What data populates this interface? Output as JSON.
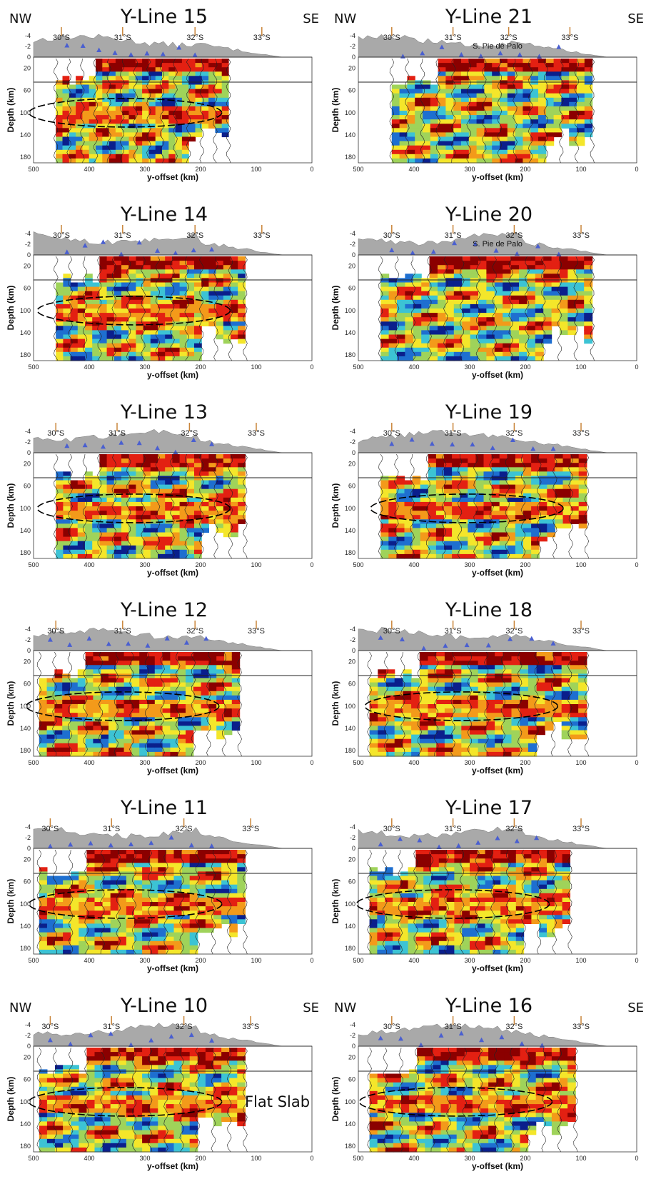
{
  "figure": {
    "corner_left": "NW",
    "corner_right": "SE",
    "xlabel": "y-offset (km)",
    "ylabel": "Depth (km)",
    "x_ticks": [
      "500",
      "400",
      "300",
      "200",
      "100",
      "0"
    ],
    "y_ticks": [
      "20",
      "60",
      "100",
      "140",
      "180"
    ],
    "topo_ticks": [
      "-4",
      "-2",
      "0"
    ],
    "lat_labels": [
      "30°S",
      "31°S",
      "32°S",
      "33°S"
    ],
    "annotation_pie": "S. Pie de Palo",
    "annotation_slab": "Flat Slab"
  },
  "chart_data": [
    {
      "type": "heatmap",
      "title": "Y-Line 15",
      "xlabel": "y-offset (km)",
      "ylabel": "Depth (km)",
      "xlim": [
        500,
        0
      ],
      "ylim": [
        0,
        190
      ],
      "corners": true,
      "data_x_range": [
        460,
        150
      ],
      "slab_depth_km": 100,
      "lat_positions_km": [
        450,
        340,
        210,
        90
      ]
    },
    {
      "type": "heatmap",
      "title": "Y-Line 21",
      "xlabel": "y-offset (km)",
      "ylabel": "Depth (km)",
      "xlim": [
        500,
        0
      ],
      "ylim": [
        0,
        190
      ],
      "corners": true,
      "data_x_range": [
        440,
        80
      ],
      "lat_positions_km": [
        440,
        330,
        230,
        120
      ],
      "annotation": "S. Pie de Palo"
    },
    {
      "type": "heatmap",
      "title": "Y-Line 14",
      "xlabel": "y-offset (km)",
      "ylabel": "Depth (km)",
      "xlim": [
        500,
        0
      ],
      "ylim": [
        0,
        190
      ],
      "data_x_range": [
        460,
        120
      ],
      "slab_depth_km": 100,
      "lat_positions_km": [
        450,
        340,
        210,
        90
      ]
    },
    {
      "type": "heatmap",
      "title": "Y-Line 20",
      "xlabel": "y-offset (km)",
      "ylabel": "Depth (km)",
      "xlim": [
        500,
        0
      ],
      "ylim": [
        0,
        190
      ],
      "data_x_range": [
        460,
        80
      ],
      "lat_positions_km": [
        440,
        330,
        220,
        100
      ],
      "annotation": "S. Pie de Palo"
    },
    {
      "type": "heatmap",
      "title": "Y-Line 13",
      "xlabel": "y-offset (km)",
      "ylabel": "Depth (km)",
      "xlim": [
        500,
        0
      ],
      "ylim": [
        0,
        190
      ],
      "data_x_range": [
        460,
        120
      ],
      "slab_depth_km": 100,
      "lat_positions_km": [
        460,
        350,
        220,
        100
      ]
    },
    {
      "type": "heatmap",
      "title": "Y-Line 19",
      "xlabel": "y-offset (km)",
      "ylabel": "Depth (km)",
      "xlim": [
        500,
        0
      ],
      "ylim": [
        0,
        190
      ],
      "data_x_range": [
        460,
        90
      ],
      "slab_depth_km": 100,
      "lat_positions_km": [
        440,
        330,
        220,
        100
      ]
    },
    {
      "type": "heatmap",
      "title": "Y-Line 12",
      "xlabel": "y-offset (km)",
      "ylabel": "Depth (km)",
      "xlim": [
        500,
        0
      ],
      "ylim": [
        0,
        190
      ],
      "data_x_range": [
        490,
        130
      ],
      "slab_depth_km": 100,
      "lat_positions_km": [
        460,
        340,
        210,
        100
      ]
    },
    {
      "type": "heatmap",
      "title": "Y-Line 18",
      "xlabel": "y-offset (km)",
      "ylabel": "Depth (km)",
      "xlim": [
        500,
        0
      ],
      "ylim": [
        0,
        190
      ],
      "data_x_range": [
        480,
        90
      ],
      "slab_depth_km": 100,
      "lat_positions_km": [
        440,
        330,
        220,
        100
      ]
    },
    {
      "type": "heatmap",
      "title": "Y-Line 11",
      "xlabel": "y-offset (km)",
      "ylabel": "Depth (km)",
      "xlim": [
        500,
        0
      ],
      "ylim": [
        0,
        190
      ],
      "data_x_range": [
        490,
        120
      ],
      "slab_depth_km": 100,
      "lat_positions_km": [
        470,
        360,
        230,
        110
      ]
    },
    {
      "type": "heatmap",
      "title": "Y-Line 17",
      "xlabel": "y-offset (km)",
      "ylabel": "Depth (km)",
      "xlim": [
        500,
        0
      ],
      "ylim": [
        0,
        190
      ],
      "data_x_range": [
        480,
        120
      ],
      "slab_depth_km": 100,
      "lat_positions_km": [
        440,
        330,
        220,
        100
      ]
    },
    {
      "type": "heatmap",
      "title": "Y-Line 10",
      "xlabel": "y-offset (km)",
      "ylabel": "Depth (km)",
      "xlim": [
        500,
        0
      ],
      "ylim": [
        0,
        190
      ],
      "corners": true,
      "data_x_range": [
        490,
        120
      ],
      "slab_depth_km": 100,
      "lat_positions_km": [
        470,
        360,
        230,
        110
      ],
      "annotation": "Flat Slab"
    },
    {
      "type": "heatmap",
      "title": "Y-Line 16",
      "xlabel": "y-offset (km)",
      "ylabel": "Depth (km)",
      "xlim": [
        500,
        0
      ],
      "ylim": [
        0,
        190
      ],
      "corners": true,
      "data_x_range": [
        480,
        110
      ],
      "slab_depth_km": 100,
      "lat_positions_km": [
        440,
        330,
        220,
        100
      ]
    }
  ],
  "colors": {
    "topo_fill": "#a9a9a9",
    "station": "#4a5fd0",
    "lat_tick": "#c9853a",
    "heat_scale": [
      "#8b0000",
      "#e32012",
      "#f39a1a",
      "#f4e62a",
      "#9fd35a",
      "#3cc3d4",
      "#1e6fd0",
      "#0a1f8c"
    ]
  }
}
